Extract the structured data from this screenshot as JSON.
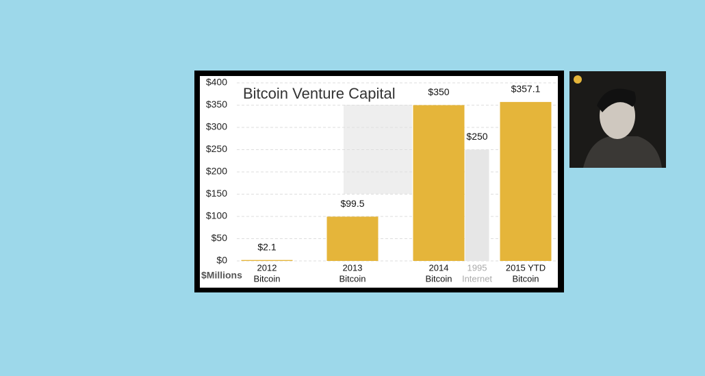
{
  "chart_data": {
    "type": "bar",
    "title": "Bitcoin Venture Capital",
    "unit_label": "$Millions",
    "categories": [
      [
        "2012",
        "Bitcoin"
      ],
      [
        "2013",
        "Bitcoin"
      ],
      [
        "2014",
        "Bitcoin"
      ],
      [
        "1995",
        "Internet"
      ],
      [
        "2015 YTD",
        "Bitcoin"
      ]
    ],
    "values": [
      2.1,
      99.5,
      350,
      250,
      357.1
    ],
    "value_labels": [
      "$2.1",
      "$99.5",
      "$350",
      "$250",
      "$357.1"
    ],
    "colors": [
      "#e5b53a",
      "#e5b53a",
      "#e5b53a",
      "#e6e6e6",
      "#e5b53a"
    ],
    "ylim": [
      0,
      400
    ],
    "yticks": [
      {
        "value": 0,
        "label": "$0"
      },
      {
        "value": 50,
        "label": "$50"
      },
      {
        "value": 100,
        "label": "$100"
      },
      {
        "value": 150,
        "label": "$150"
      },
      {
        "value": 200,
        "label": "$200"
      },
      {
        "value": 250,
        "label": "$250"
      },
      {
        "value": 300,
        "label": "$300"
      },
      {
        "value": 350,
        "label": "$350"
      },
      {
        "value": 400,
        "label": "$400"
      }
    ],
    "grid": true
  }
}
